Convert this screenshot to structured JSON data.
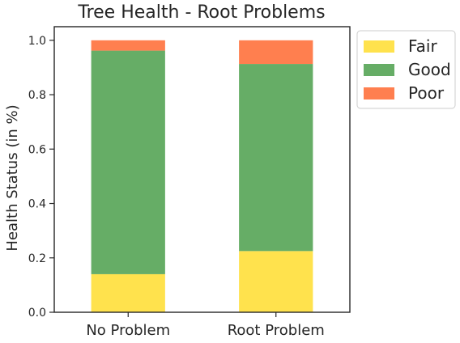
{
  "chart_data": {
    "type": "bar",
    "stacked": true,
    "title": "Tree Health - Root Problems",
    "xlabel": "",
    "ylabel": "Health Status (in %)",
    "categories": [
      "No Problem",
      "Root Problem"
    ],
    "series": [
      {
        "name": "Fair",
        "color": "#ffe24d",
        "values": [
          0.14,
          0.225
        ]
      },
      {
        "name": "Good",
        "color": "#66ad66",
        "values": [
          0.822,
          0.688
        ]
      },
      {
        "name": "Poor",
        "color": "#ff7f4f",
        "values": [
          0.038,
          0.087
        ]
      }
    ],
    "ylim": [
      0,
      1.05
    ],
    "yticks": [
      0.0,
      0.2,
      0.4,
      0.6,
      0.8,
      1.0
    ],
    "ytick_labels": [
      "0.0",
      "0.2",
      "0.4",
      "0.6",
      "0.8",
      "1.0"
    ],
    "grid": false,
    "legend_position": "outside-top-right"
  }
}
